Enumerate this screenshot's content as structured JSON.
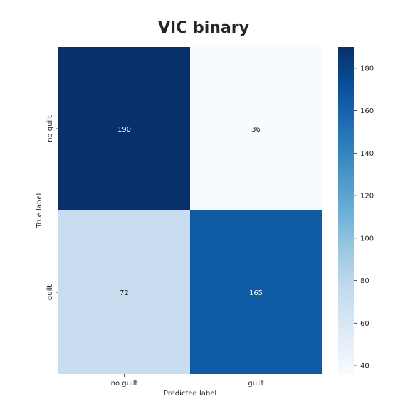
{
  "chart_data": {
    "type": "heatmap",
    "title": "VIC binary",
    "xlabel": "Predicted label",
    "ylabel": "True label",
    "x_categories": [
      "no guilt",
      "guilt"
    ],
    "y_categories": [
      "no guilt",
      "guilt"
    ],
    "values": [
      [
        190,
        36
      ],
      [
        72,
        165
      ]
    ],
    "colormap": "Blues",
    "colorbar": {
      "range": [
        36,
        190
      ],
      "ticks": [
        40,
        60,
        80,
        100,
        120,
        140,
        160,
        180
      ]
    },
    "grid": false
  }
}
